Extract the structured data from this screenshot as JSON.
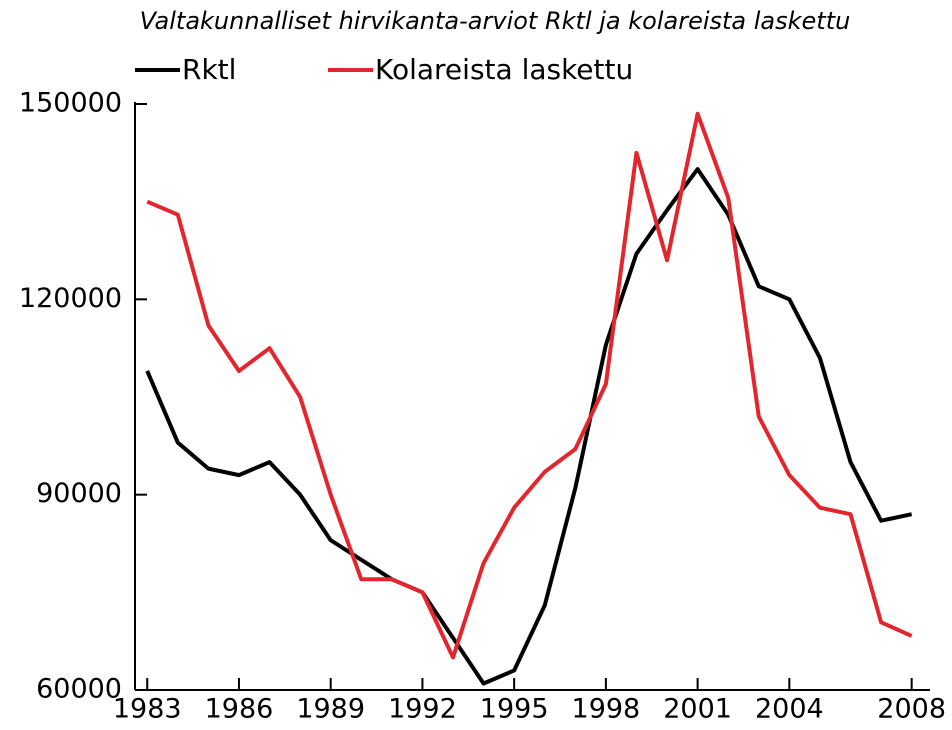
{
  "chart_data": {
    "type": "line",
    "title": "Valtakunnalliset hirvikanta-arviot Rktl ja kolareista laskettu",
    "x": [
      1983,
      1984,
      1985,
      1986,
      1987,
      1988,
      1989,
      1990,
      1991,
      1992,
      1993,
      1994,
      1995,
      1996,
      1997,
      1998,
      1999,
      2000,
      2001,
      2002,
      2003,
      2004,
      2005,
      2006,
      2007,
      2008
    ],
    "series": [
      {
        "name": "Rktl",
        "color": "#000000",
        "values": [
          109000,
          98000,
          94000,
          93000,
          95000,
          90000,
          83000,
          80000,
          77000,
          75000,
          68000,
          61000,
          63000,
          73000,
          91000,
          113000,
          127000,
          133700,
          140000,
          133000,
          122000,
          120000,
          111000,
          95000,
          86000,
          87000
        ]
      },
      {
        "name": "Kolareista laskettu",
        "color": "#e3262d",
        "values": [
          135000,
          133000,
          116000,
          109000,
          112500,
          105000,
          90000,
          77000,
          77000,
          75000,
          65000,
          79500,
          88000,
          93500,
          97000,
          107000,
          142500,
          126000,
          148500,
          135600,
          102000,
          93000,
          88000,
          87000,
          70400,
          68300
        ]
      }
    ],
    "xlim": [
      1982.6,
      2008.6
    ],
    "xticks": [
      1983,
      1986,
      1989,
      1992,
      1995,
      1998,
      2001,
      2004,
      2008
    ],
    "ylim": [
      60000,
      150000
    ],
    "yticks": [
      60000,
      90000,
      120000,
      150000
    ],
    "grid": false
  }
}
